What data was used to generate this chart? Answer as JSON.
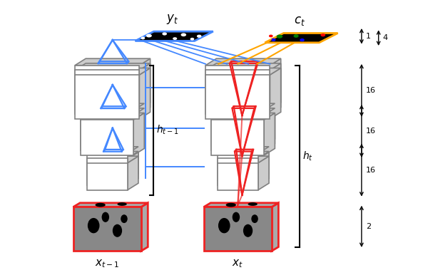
{
  "title": "",
  "bg_color": "white",
  "blue_color": "#4488FF",
  "red_color": "#EE2222",
  "orange_color": "#FFA500",
  "gray_color": "#999999",
  "light_gray": "#CCCCCC",
  "dark_gray": "#555555",
  "black": "#000000",
  "white": "#FFFFFF",
  "labels": {
    "yt": "$y_t$",
    "ct": "$c_t$",
    "ht1": "$h_{t-1}$",
    "ht": "$h_t$",
    "xt1": "$x_{t-1}$",
    "xt": "$x_t$"
  },
  "figsize": [
    6.0,
    3.86
  ],
  "dpi": 100
}
